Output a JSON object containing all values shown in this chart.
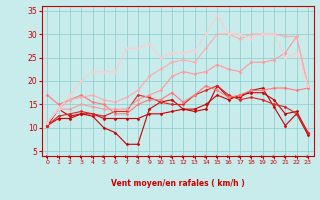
{
  "title": "",
  "xlabel": "Vent moyen/en rafales ( km/h )",
  "ylabel": "",
  "xlim": [
    -0.5,
    23.5
  ],
  "ylim": [
    4,
    36
  ],
  "yticks": [
    5,
    10,
    15,
    20,
    25,
    30,
    35
  ],
  "xticks": [
    0,
    1,
    2,
    3,
    4,
    5,
    6,
    7,
    8,
    9,
    10,
    11,
    12,
    13,
    14,
    15,
    16,
    17,
    18,
    19,
    20,
    21,
    22,
    23
  ],
  "background_color": "#c8ecec",
  "grid_color": "#88cccc",
  "series": [
    {
      "x": [
        0,
        1,
        2,
        3,
        4,
        5,
        6,
        7,
        8,
        9,
        10,
        11,
        12,
        13,
        14,
        15,
        16,
        17,
        18,
        19,
        20,
        21,
        22,
        23
      ],
      "y": [
        10.5,
        14,
        12.5,
        13,
        12.5,
        10,
        9,
        6.5,
        6.5,
        14,
        15.5,
        16,
        14,
        13.5,
        14,
        19,
        16.5,
        16.5,
        18,
        18.5,
        14.5,
        10.5,
        13,
        8.5
      ],
      "color": "#cc0000",
      "lw": 0.8,
      "marker": "D",
      "ms": 1.5
    },
    {
      "x": [
        0,
        1,
        2,
        3,
        4,
        5,
        6,
        7,
        8,
        9,
        10,
        11,
        12,
        13,
        14,
        15,
        16,
        17,
        18,
        19,
        20,
        21,
        22,
        23
      ],
      "y": [
        10.5,
        12,
        12,
        13,
        13,
        12,
        12,
        12,
        12,
        13,
        13,
        13.5,
        14,
        14,
        15,
        17,
        16,
        17,
        17.5,
        17.5,
        16,
        13,
        13.5,
        9
      ],
      "color": "#cc0000",
      "lw": 0.8,
      "marker": "D",
      "ms": 1.5
    },
    {
      "x": [
        0,
        1,
        2,
        3,
        4,
        5,
        6,
        7,
        8,
        9,
        10,
        11,
        12,
        13,
        14,
        15,
        16,
        17,
        18,
        19,
        20,
        21,
        22,
        23
      ],
      "y": [
        10.5,
        12.5,
        13,
        13.5,
        13,
        12.5,
        13.5,
        13.5,
        17,
        16.5,
        15.5,
        15,
        15,
        17,
        18,
        19,
        17,
        16,
        16.5,
        16,
        15,
        14.5,
        13,
        9
      ],
      "color": "#dd2222",
      "lw": 0.8,
      "marker": "D",
      "ms": 1.5
    },
    {
      "x": [
        0,
        1,
        2,
        3,
        4,
        5,
        6,
        7,
        8,
        9,
        10,
        11,
        12,
        13,
        14,
        15,
        16,
        17,
        18,
        19,
        20,
        21,
        22,
        23
      ],
      "y": [
        17,
        15,
        16,
        17,
        15.5,
        15,
        13,
        13,
        15,
        16,
        16,
        17.5,
        15.5,
        17,
        19,
        18,
        16.5,
        17,
        18,
        18,
        18.5,
        18.5,
        18,
        18.5
      ],
      "color": "#ff7777",
      "lw": 0.8,
      "marker": "D",
      "ms": 1.5
    },
    {
      "x": [
        0,
        1,
        2,
        3,
        4,
        5,
        6,
        7,
        8,
        9,
        10,
        11,
        12,
        13,
        14,
        15,
        16,
        17,
        18,
        19,
        20,
        21,
        22,
        23
      ],
      "y": [
        11,
        14,
        14,
        15,
        14.5,
        14,
        14,
        14,
        16,
        17,
        18,
        21,
        22,
        21.5,
        22,
        23.5,
        22.5,
        22,
        24,
        24,
        24.5,
        26,
        29.5,
        19
      ],
      "color": "#ff9999",
      "lw": 0.8,
      "marker": "D",
      "ms": 1.5
    },
    {
      "x": [
        0,
        1,
        2,
        3,
        4,
        5,
        6,
        7,
        8,
        9,
        10,
        11,
        12,
        13,
        14,
        15,
        16,
        17,
        18,
        19,
        20,
        21,
        22,
        23
      ],
      "y": [
        11,
        14,
        16,
        16.5,
        17,
        16,
        15.5,
        16.5,
        18,
        21,
        22.5,
        24,
        24.5,
        24,
        27,
        30,
        30,
        29,
        30,
        30,
        30,
        29.5,
        29.5,
        19
      ],
      "color": "#ffaaaa",
      "lw": 0.8,
      "marker": "D",
      "ms": 1.5
    },
    {
      "x": [
        0,
        1,
        2,
        3,
        4,
        5,
        6,
        7,
        8,
        9,
        10,
        11,
        12,
        13,
        14,
        15,
        16,
        17,
        18,
        19,
        20,
        21,
        22,
        23
      ],
      "y": [
        11,
        14,
        17,
        20,
        22,
        22,
        22,
        27,
        27,
        28,
        25,
        26,
        26,
        26.5,
        30,
        34,
        30,
        30,
        29,
        30,
        30,
        25,
        26,
        19
      ],
      "color": "#ffcccc",
      "lw": 0.8,
      "marker": "D",
      "ms": 1.5
    }
  ]
}
